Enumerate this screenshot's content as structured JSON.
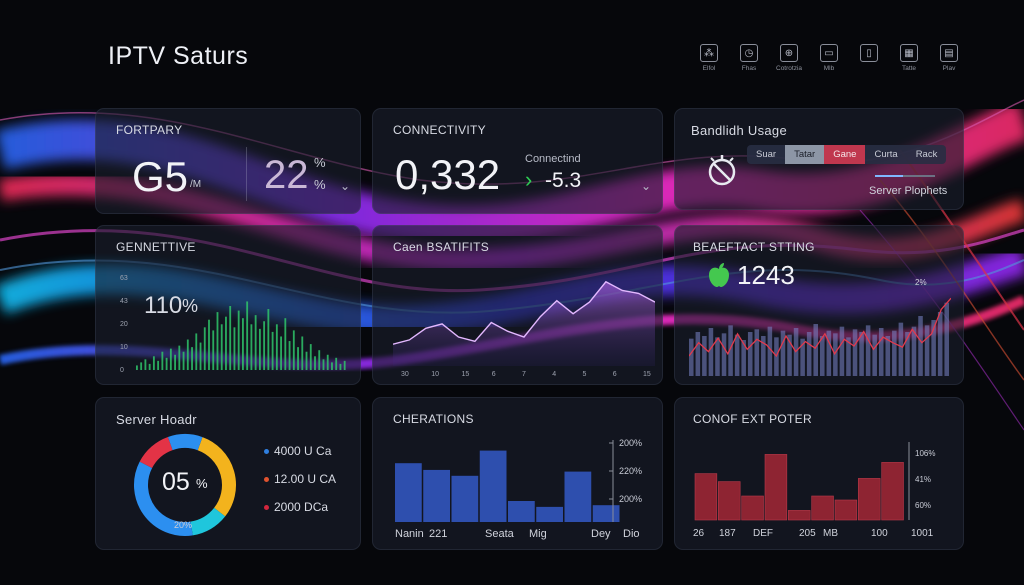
{
  "header": {
    "title": "IPTV Saturs",
    "tools": [
      {
        "icon": "cluster-icon",
        "glyph": "⁂",
        "label": "Elfol"
      },
      {
        "icon": "clock-icon",
        "glyph": "◷",
        "label": "Fhas"
      },
      {
        "icon": "globe-icon",
        "glyph": "⊕",
        "label": "Cotrotzia"
      },
      {
        "icon": "monitor-icon",
        "glyph": "▭",
        "label": "Mlb"
      },
      {
        "icon": "file-icon",
        "glyph": "▯",
        "label": ""
      },
      {
        "icon": "grid-icon",
        "glyph": "▦",
        "label": "Tatte"
      },
      {
        "icon": "card-icon",
        "glyph": "▤",
        "label": "Plav"
      }
    ]
  },
  "portfary": {
    "title": "FORTPARY",
    "value": "G5",
    "unit": "/M",
    "percent": "22",
    "percent_sign": "%",
    "percent_sign2": "%"
  },
  "connectivity": {
    "title": "CONNECTIVITY",
    "value": "0,332",
    "sub_label": "Connectind",
    "delta": "-5.3",
    "arrow": "›"
  },
  "bandwidth": {
    "title": "Bandlidh Usage",
    "options": [
      "Suar",
      "Tatar",
      "Gane",
      "Curta",
      "Rack"
    ],
    "footer": "Server Plophets"
  },
  "genettive": {
    "title": "GENNETTIVE",
    "value": "110",
    "unit": "%",
    "y_ticks": [
      "63",
      "43",
      "20",
      "10",
      "0"
    ]
  },
  "caen": {
    "title": "Caen BSATIFITS",
    "x_ticks": [
      "30",
      "10",
      "15",
      "6",
      "7",
      "4",
      "5",
      "6",
      "15"
    ]
  },
  "beaeftact": {
    "title": "BEAEFTACT STTING",
    "value": "1243",
    "corner_label": "2%"
  },
  "server_health": {
    "title": "Server Hoadr",
    "value": "05",
    "unit": "%",
    "bottom_label": "20%",
    "legend": [
      {
        "label": "4000 U Ca",
        "color": "#2f7fe0"
      },
      {
        "label": "12.00 U CA",
        "color": "#e0532f"
      },
      {
        "label": "2000 DCa",
        "color": "#d2263d"
      }
    ]
  },
  "cherations": {
    "title": "CHERATIONS",
    "y_ticks": [
      "200%",
      "220%",
      "200%"
    ],
    "x_labels": [
      "Nanin",
      "221",
      "Seata",
      "Mig",
      "Dey",
      "Dio"
    ]
  },
  "conof": {
    "title": "CONOF EXT POTER",
    "y_ticks": [
      "106%",
      "41%",
      "60%"
    ],
    "x_labels": [
      "26",
      "187",
      "DEF",
      "205",
      "MB",
      "100",
      "1001"
    ]
  },
  "chart_data": [
    {
      "type": "bar",
      "title": "GENNETTIVE",
      "values": [
        3,
        5,
        7,
        4,
        9,
        6,
        12,
        8,
        14,
        10,
        16,
        12,
        20,
        15,
        24,
        18,
        28,
        33,
        26,
        38,
        30,
        35,
        42,
        28,
        39,
        34,
        45,
        30,
        36,
        27,
        32,
        40,
        25,
        30,
        22,
        34,
        19,
        26,
        15,
        22,
        12,
        17,
        9,
        13,
        7,
        10,
        5,
        8,
        4,
        6
      ],
      "color": "#2fc46a"
    },
    {
      "type": "area",
      "title": "Caen BSATIFITS",
      "values": [
        15,
        18,
        26,
        29,
        20,
        17,
        30,
        24,
        20,
        34,
        45,
        36,
        44,
        58,
        52,
        50,
        44
      ],
      "color": "#b87ce0"
    },
    {
      "type": "bar",
      "title": "BEAEFTACT STTING",
      "values": [
        28,
        33,
        30,
        36,
        29,
        32,
        38,
        31,
        27,
        33,
        35,
        30,
        37,
        29,
        34,
        31,
        36,
        28,
        33,
        39,
        30,
        34,
        32,
        37,
        29,
        35,
        33,
        38,
        31,
        36,
        30,
        34,
        40,
        33,
        37,
        45,
        38,
        42,
        48,
        55
      ],
      "line": [
        18,
        30,
        22,
        34,
        20,
        38,
        24,
        33,
        28,
        18,
        36,
        22,
        31,
        25,
        38,
        20,
        33,
        27,
        40,
        24,
        35,
        30,
        26,
        42,
        30,
        38,
        60,
        70
      ],
      "color": "#7a85c8",
      "line_color": "#e23a4d"
    },
    {
      "type": "pie",
      "title": "Server Hoadr",
      "slices": [
        {
          "value": 30,
          "color": "#f3b31d"
        },
        {
          "value": 12,
          "color": "#1fc6dc"
        },
        {
          "value": 35,
          "color": "#2c8ff0"
        },
        {
          "value": 12,
          "color": "#e33346"
        },
        {
          "value": 11,
          "color": "#2c8ff0"
        }
      ]
    },
    {
      "type": "bar",
      "title": "CHERATIONS",
      "values": [
        70,
        62,
        55,
        85,
        25,
        18,
        60,
        20
      ],
      "ylim": [
        0,
        100
      ],
      "color": "#2e4fae"
    },
    {
      "type": "bar",
      "title": "CONOF EXT POTER",
      "values": [
        58,
        48,
        30,
        82,
        12,
        30,
        25,
        52,
        72
      ],
      "ylim": [
        0,
        100
      ],
      "color": "#8e2432"
    }
  ],
  "colors": {
    "accent_pink": "#ff2fd6",
    "accent_blue": "#2a5cff",
    "delta_green": "#2fcf55",
    "apple_green": "#44c84f"
  }
}
